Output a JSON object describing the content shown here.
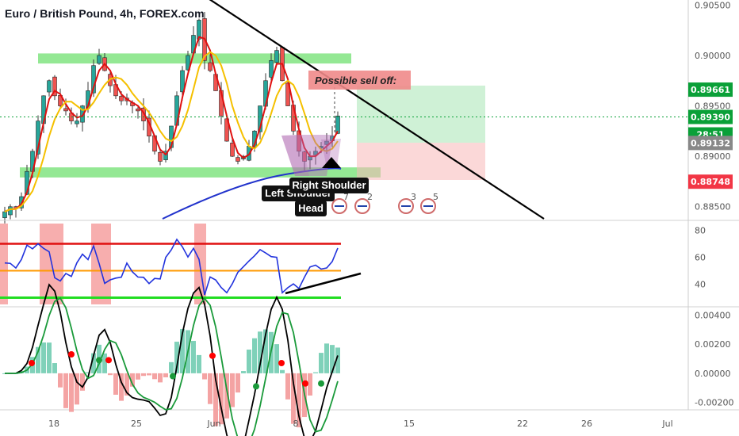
{
  "title": "Euro / British Pound, 4h, FOREX.com",
  "colors": {
    "bull": "#26a69a",
    "bear": "#ef5350",
    "red_line": "#e01010",
    "yellow_line": "#f5c000",
    "blue_line": "#2233cc",
    "zone": "#70e070",
    "rsi": "#2233dd",
    "green_tag": "#0aa038",
    "red_tag": "#f23645",
    "trend": "#000000"
  },
  "price_axis": {
    "labels": [
      "0.90500",
      "0.90000",
      "0.89500",
      "0.89000",
      "0.88500"
    ],
    "tags": [
      {
        "text": "0.89661",
        "kind": "green"
      },
      {
        "text": "0.89390",
        "kind": "green"
      },
      {
        "text": "28:51",
        "kind": "green"
      },
      {
        "text": "0.89132",
        "kind": "gray"
      },
      {
        "text": "0.88748",
        "kind": "red"
      }
    ]
  },
  "rsi_axis": {
    "labels": [
      "80",
      "60",
      "40"
    ]
  },
  "macd_axis": {
    "labels": [
      "0.00400",
      "0.00200",
      "0.00000",
      "-0.00200"
    ]
  },
  "time_axis": {
    "labels": [
      "18",
      "25",
      "Jun",
      "8",
      "15",
      "22",
      "26",
      "Jul"
    ]
  },
  "annotations": {
    "possible_sell_off": "Possible sell off:",
    "left_shoulder": "Left Shoulder",
    "right_shoulder": "Right Shoulder",
    "head": "Head",
    "event_numbers": [
      "7",
      "2",
      "3",
      "5"
    ]
  },
  "chart_data": {
    "type": "candlestick",
    "title": "Euro / British Pound, 4h, FOREX.com",
    "ylim": [
      0.8838,
      0.9055
    ],
    "close_series": [
      0.8845,
      0.885,
      0.8848,
      0.886,
      0.8885,
      0.8905,
      0.8935,
      0.896,
      0.8975,
      0.896,
      0.895,
      0.8945,
      0.8935,
      0.8935,
      0.895,
      0.8965,
      0.899,
      0.9,
      0.8985,
      0.897,
      0.896,
      0.8955,
      0.8955,
      0.895,
      0.8945,
      0.8935,
      0.892,
      0.8905,
      0.8895,
      0.8905,
      0.893,
      0.896,
      0.8985,
      0.9,
      0.902,
      0.9035,
      0.8995,
      0.8985,
      0.8965,
      0.894,
      0.8915,
      0.89,
      0.8895,
      0.89,
      0.891,
      0.8925,
      0.895,
      0.8975,
      0.8995,
      0.9005,
      0.8975,
      0.895,
      0.8925,
      0.8905,
      0.8895,
      0.89,
      0.8905,
      0.891,
      0.8915,
      0.892,
      0.894
    ],
    "zones": [
      [
        0.8992,
        0.9002
      ],
      [
        0.8879,
        0.8889
      ]
    ],
    "rsi": {
      "ylim": [
        25,
        85
      ],
      "levels": [
        70,
        50,
        30
      ]
    },
    "macd": {
      "ylim": [
        -0.0024,
        0.0044
      ]
    }
  }
}
